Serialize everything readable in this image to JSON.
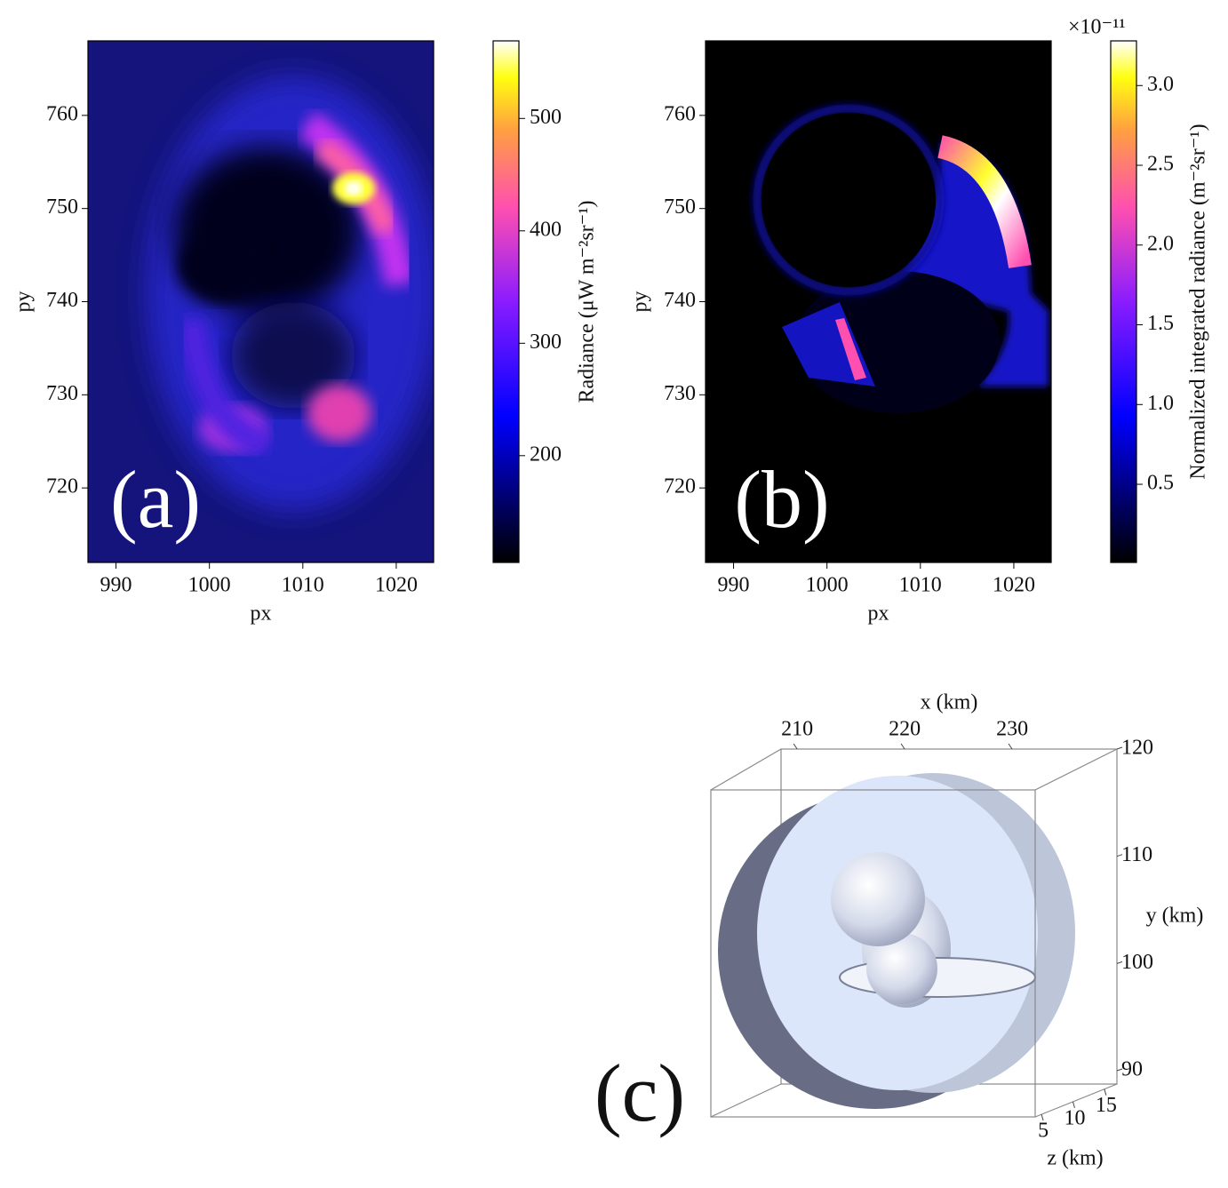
{
  "chart_data": [
    {
      "type": "heatmap",
      "panel_label": "(a)",
      "xlabel": "px",
      "ylabel": "py",
      "xlim": [
        987,
        1024
      ],
      "ylim": [
        712,
        768
      ],
      "xticks": [
        990,
        1000,
        1010,
        1020
      ],
      "yticks": [
        720,
        730,
        740,
        750,
        760
      ],
      "colorbar": {
        "label": "Radiance (μW m⁻²sr⁻¹)",
        "lim": [
          105,
          569
        ],
        "ticks": [
          200,
          300,
          400,
          500
        ]
      }
    },
    {
      "type": "heatmap",
      "panel_label": "(b)",
      "xlabel": "px",
      "ylabel": "py",
      "xlim": [
        987,
        1024
      ],
      "ylim": [
        712,
        768
      ],
      "xticks": [
        990,
        1000,
        1010,
        1020
      ],
      "yticks": [
        720,
        730,
        740,
        750,
        760
      ],
      "colorbar": {
        "label": "Normalized integrated radiance (m⁻²sr⁻¹)",
        "offset_label": "×10⁻¹¹",
        "lim": [
          0.01,
          3.28
        ],
        "ticks": [
          0.5,
          {
            "value": 1,
            "label": "1.0"
          },
          1.5,
          {
            "value": 2,
            "label": "2.0"
          },
          2.5,
          {
            "value": 3,
            "label": "3.0"
          }
        ]
      }
    },
    {
      "type": "surface3d",
      "panel_label": "(c)",
      "xlabel": "x (km)",
      "ylabel": "y (km)",
      "zlabel": "z (km)",
      "xlim": [
        208.5,
        239.75
      ],
      "ylim": [
        88.76,
        120
      ],
      "zlim": [
        4,
        17
      ],
      "xticks": [
        210,
        220,
        230
      ],
      "yticks": [
        90,
        100,
        110,
        120
      ],
      "zticks": [
        5,
        10,
        15
      ]
    }
  ]
}
